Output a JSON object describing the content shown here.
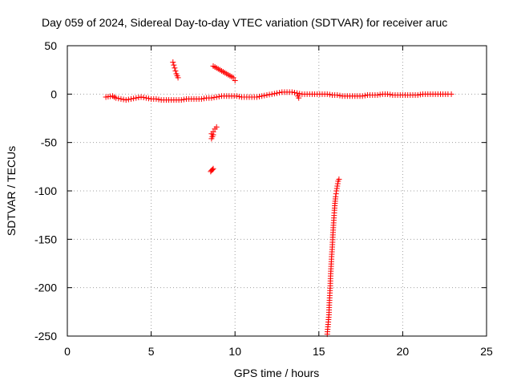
{
  "chart_data": {
    "type": "scatter",
    "title": "Day 059 of 2024, Sidereal Day-to-day VTEC variation (SDTVAR) for receiver aruc",
    "xlabel": "GPS time / hours",
    "ylabel": "SDTVAR / TECUs",
    "xlim": [
      0,
      25
    ],
    "ylim": [
      -250,
      50
    ],
    "xticks": [
      0,
      5,
      10,
      15,
      20,
      25
    ],
    "yticks": [
      -250,
      -200,
      -150,
      -100,
      -50,
      0,
      50
    ],
    "xtick_labels": [
      "0",
      "5",
      "10",
      "15",
      "20",
      "25"
    ],
    "ytick_labels": [
      "-250",
      "-200",
      "-150",
      "-100",
      "-50",
      "0",
      "50"
    ],
    "grid": true,
    "marker": "plus",
    "color": "#ff0000",
    "series": [
      {
        "name": "SDTVAR",
        "segments": [
          {
            "label": "main-trace",
            "x": [
              2.3,
              2.7,
              2.9,
              3.2,
              3.5,
              3.8,
              4.1,
              4.4,
              4.7,
              5.0,
              5.3,
              5.6,
              5.9,
              6.2,
              6.5,
              6.8,
              7.1,
              7.4,
              7.7,
              8.0,
              8.3,
              8.6,
              8.9,
              9.2,
              9.5,
              9.8,
              10.1,
              10.4,
              10.7,
              11.0,
              11.3,
              11.6,
              11.9,
              12.2,
              12.5,
              12.8,
              13.1,
              13.4,
              13.7,
              14.0,
              14.3,
              14.6,
              14.9,
              15.2,
              15.5,
              15.8,
              16.1,
              16.4,
              16.7,
              17.0,
              17.3,
              17.6,
              17.9,
              18.2,
              18.5,
              18.8,
              19.1,
              19.4,
              19.7,
              20.0,
              20.3,
              20.6,
              20.9,
              21.2,
              21.5,
              21.8,
              22.1,
              22.4,
              22.7,
              22.9
            ],
            "y": [
              -3,
              -2,
              -4,
              -5,
              -6,
              -5,
              -4,
              -3,
              -4,
              -5,
              -5,
              -6,
              -6,
              -6,
              -6,
              -6,
              -5,
              -5,
              -5,
              -5,
              -4,
              -4,
              -3,
              -2,
              -2,
              -2,
              -2,
              -3,
              -3,
              -3,
              -3,
              -2,
              -1,
              0,
              1,
              2,
              2,
              2,
              1,
              0,
              0,
              0,
              0,
              0,
              0,
              -1,
              -1,
              -2,
              -2,
              -2,
              -2,
              -2,
              -1,
              -1,
              -1,
              0,
              0,
              -1,
              -1,
              -1,
              -1,
              -1,
              -1,
              0,
              0,
              0,
              0,
              0,
              0,
              0
            ]
          },
          {
            "label": "spike-6.5h",
            "x": [
              6.3,
              6.35,
              6.4,
              6.45,
              6.5,
              6.55,
              6.6
            ],
            "y": [
              33,
              30,
              27,
              24,
              21,
              19,
              17
            ]
          },
          {
            "label": "descent-9h",
            "x": [
              8.7,
              8.9,
              9.1,
              9.3,
              9.5,
              9.7,
              9.9,
              10.0
            ],
            "y": [
              29,
              27,
              25,
              23,
              21,
              19,
              17,
              14
            ]
          },
          {
            "label": "drop-8.7h-a",
            "x": [
              8.6,
              8.7,
              8.8,
              8.9
            ],
            "y": [
              -41,
              -39,
              -36,
              -34
            ]
          },
          {
            "label": "drop-8.7h-b",
            "x": [
              8.6,
              8.65,
              8.7
            ],
            "y": [
              -46,
              -44,
              -42
            ]
          },
          {
            "label": "drop-8.7h-c",
            "x": [
              8.55,
              8.6,
              8.65,
              8.7
            ],
            "y": [
              -80,
              -79,
              -78,
              -77
            ]
          },
          {
            "label": "plunge-15.5h",
            "x": [
              15.5,
              15.55,
              15.6,
              15.62,
              15.65,
              15.68,
              15.7,
              15.73,
              15.76,
              15.8,
              15.83,
              15.86,
              15.9,
              15.93,
              15.96,
              16.0,
              16.05,
              16.1,
              16.15,
              16.2
            ],
            "y": [
              -248,
              -238,
              -228,
              -218,
              -208,
              -198,
              -188,
              -178,
              -168,
              -158,
              -148,
              -138,
              -128,
              -120,
              -113,
              -106,
              -100,
              -95,
              -90,
              -88
            ]
          },
          {
            "label": "extra-14h",
            "x": [
              13.75,
              13.8
            ],
            "y": [
              -2,
              -4
            ]
          }
        ]
      }
    ]
  }
}
